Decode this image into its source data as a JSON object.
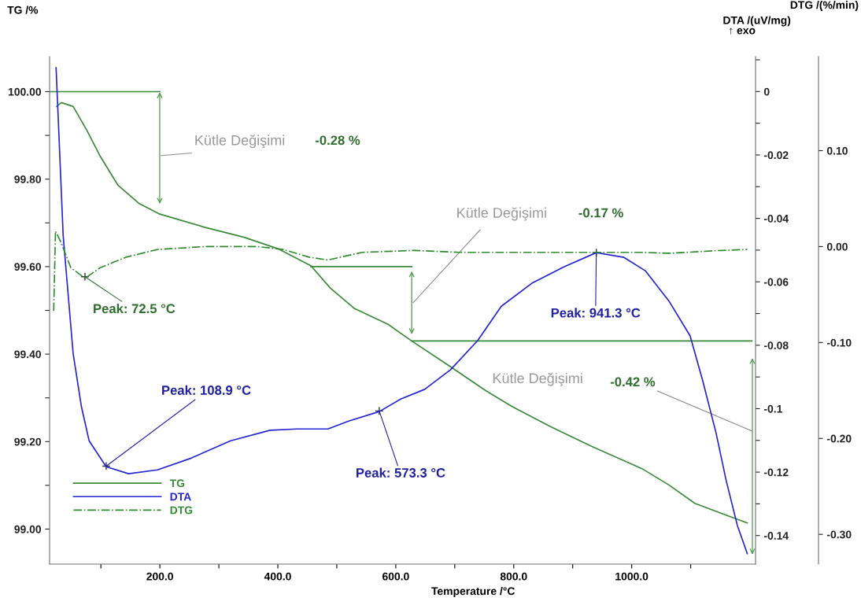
{
  "chart_data": {
    "type": "line",
    "xlabel": "Temperature /°C",
    "ylabel": "TG /%",
    "y2label": "DTA /(uV/mg)",
    "y3label": "DTG /(%/min)",
    "xlim": [
      13,
      1210
    ],
    "ylim": [
      98.92,
      100.08
    ],
    "y2lim": [
      -0.149,
      0.011
    ],
    "y3lim": [
      -0.331,
      0.198
    ],
    "xticks": [
      {
        "value": 100,
        "label": null
      },
      {
        "value": 200,
        "label": "200.0"
      },
      {
        "value": 300,
        "label": null
      },
      {
        "value": 400,
        "label": "400.0"
      },
      {
        "value": 500,
        "label": null
      },
      {
        "value": 600,
        "label": "600.0"
      },
      {
        "value": 700,
        "label": null
      },
      {
        "value": 800,
        "label": "800.0"
      },
      {
        "value": 900,
        "label": null
      },
      {
        "value": 1000,
        "label": "1000.0"
      },
      {
        "value": 1100,
        "label": null
      }
    ],
    "yticks": [
      {
        "value": 99.0,
        "label": "99.00"
      },
      {
        "value": 99.1,
        "label": null
      },
      {
        "value": 99.2,
        "label": "99.20"
      },
      {
        "value": 99.3,
        "label": null
      },
      {
        "value": 99.4,
        "label": "99.40"
      },
      {
        "value": 99.5,
        "label": null
      },
      {
        "value": 99.6,
        "label": "99.60"
      },
      {
        "value": 99.7,
        "label": null
      },
      {
        "value": 99.8,
        "label": "99.80"
      },
      {
        "value": 99.9,
        "label": null
      },
      {
        "value": 100.0,
        "label": "100.00"
      }
    ],
    "y2ticks": [
      {
        "value": 0.01,
        "label": null
      },
      0,
      {
        "value": -0.01,
        "label": null
      },
      -0.02,
      {
        "value": -0.03,
        "label": null
      },
      -0.04,
      {
        "value": -0.05,
        "label": null
      },
      -0.06,
      {
        "value": -0.07,
        "label": null
      },
      -0.08,
      {
        "value": -0.09,
        "label": null
      },
      -0.1,
      {
        "value": -0.11,
        "label": null
      },
      -0.12,
      {
        "value": -0.13,
        "label": null
      },
      -0.14
    ],
    "y3ticks": [
      {
        "value": 0.1,
        "label": "0.10"
      },
      {
        "value": 0.0,
        "label": "0.00"
      },
      {
        "value": -0.1,
        "label": "-0.10"
      },
      {
        "value": -0.2,
        "label": "-0.20"
      },
      {
        "value": -0.3,
        "label": "-0.30"
      }
    ],
    "legend": "bottom left",
    "series": [
      {
        "name": "TG",
        "color": "#3a8a3a",
        "line_style": "solid",
        "x": [
          25,
          33,
          53,
          76,
          99,
          129,
          165,
          200,
          276,
          343,
          400,
          456,
          489,
          529,
          587,
          627,
          693,
          752,
          796,
          863,
          929,
          1019,
          1063,
          1107,
          1152,
          1196
        ],
        "values": [
          99.966,
          99.975,
          99.966,
          99.912,
          99.852,
          99.786,
          99.744,
          99.72,
          99.69,
          99.667,
          99.641,
          99.602,
          99.551,
          99.505,
          99.468,
          99.43,
          99.371,
          99.317,
          99.281,
          99.234,
          99.191,
          99.137,
          99.101,
          99.059,
          99.036,
          99.014
        ]
      },
      {
        "name": "DTA",
        "color": "#2424d0",
        "line_style": "solid",
        "axis": "y2",
        "x": [
          24,
          27,
          36,
          53,
          67,
          80,
          109,
          147,
          196,
          253,
          320,
          387,
          432,
          485,
          520,
          572,
          609,
          649,
          693,
          739,
          779,
          832,
          885,
          940,
          987,
          1023,
          1063,
          1099,
          1120,
          1143,
          1160,
          1179,
          1196
        ],
        "values": [
          0.0075,
          -0.0055,
          -0.0453,
          -0.0827,
          -0.0994,
          -0.1101,
          -0.1183,
          -0.1205,
          -0.1193,
          -0.1156,
          -0.1101,
          -0.1068,
          -0.1064,
          -0.1064,
          -0.1039,
          -0.1009,
          -0.0969,
          -0.0939,
          -0.0877,
          -0.0785,
          -0.0677,
          -0.0603,
          -0.0553,
          -0.0508,
          -0.0523,
          -0.0565,
          -0.066,
          -0.077,
          -0.0909,
          -0.1076,
          -0.1225,
          -0.1367,
          -0.1457
        ]
      },
      {
        "name": "DTG",
        "color": "#2e8b2e",
        "line_style": "dashdot",
        "axis": "y3",
        "x": [
          20,
          23,
          32,
          49,
          73,
          99,
          143,
          196,
          276,
          365,
          409,
          453,
          485,
          543,
          632,
          707,
          796,
          929,
          1019,
          1063,
          1152,
          1196
        ],
        "values": [
          -0.067,
          0.016,
          0.005,
          -0.022,
          -0.033,
          -0.022,
          -0.011,
          -0.003,
          0.0,
          0.0,
          -0.003,
          -0.011,
          -0.014,
          -0.006,
          -0.004,
          -0.006,
          -0.006,
          -0.006,
          -0.006,
          -0.007,
          -0.004,
          -0.003
        ]
      },
      {
        "color": "#3a8a3a",
        "line_style": "solid",
        "x": [
          13,
          200
        ],
        "values": [
          100.0,
          100.0
        ]
      },
      {
        "color": "#3a8a3a",
        "line_style": "solid",
        "x": [
          456,
          627
        ],
        "values": [
          99.6,
          99.6
        ]
      },
      {
        "color": "#3a8a3a",
        "line_style": "solid",
        "x": [
          627,
          1204
        ],
        "values": [
          99.43,
          99.43
        ]
      }
    ],
    "annotations": [
      "↑ exo",
      "Kütle Değişimi",
      "-0.28 %",
      "Kütle Değişimi",
      "-0.17 %",
      "Kütle Değişimi",
      "-0.42 %",
      {
        "text": "Peak: 72.5 °C",
        "x": 73,
        "y": 99.577
      },
      {
        "text": "Peak: 108.9 °C",
        "x": 109,
        "y": 99.144
      },
      {
        "text": "Peak: 573.3 °C",
        "x": 572,
        "y": 99.27
      },
      {
        "text": "Peak: 941.3 °C",
        "x": 940,
        "y": 99.632
      }
    ]
  }
}
